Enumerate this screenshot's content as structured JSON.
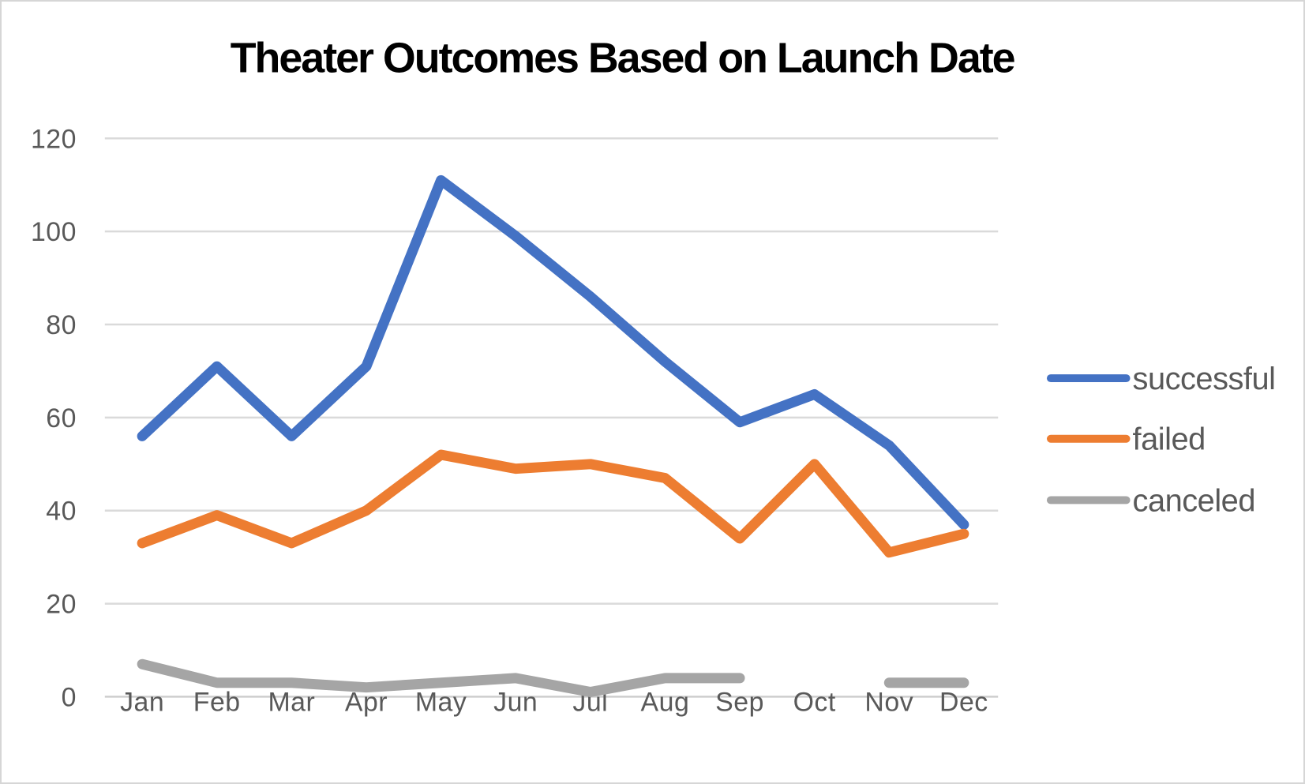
{
  "chart_data": {
    "type": "line",
    "title": "Theater Outcomes Based on Launch Date",
    "categories": [
      "Jan",
      "Feb",
      "Mar",
      "Apr",
      "May",
      "Jun",
      "Jul",
      "Aug",
      "Sep",
      "Oct",
      "Nov",
      "Dec"
    ],
    "series": [
      {
        "name": "successful",
        "color": "#4472C4",
        "values": [
          56,
          71,
          56,
          71,
          111,
          99,
          86,
          72,
          59,
          65,
          54,
          37
        ]
      },
      {
        "name": "failed",
        "color": "#ED7D31",
        "values": [
          33,
          39,
          33,
          40,
          52,
          49,
          50,
          47,
          34,
          50,
          31,
          35
        ]
      },
      {
        "name": "canceled",
        "color": "#A5A5A5",
        "values": [
          7,
          3,
          3,
          2,
          3,
          4,
          1,
          4,
          4,
          null,
          3,
          3
        ]
      }
    ],
    "ylim": [
      0,
      120
    ],
    "yticks": [
      0,
      20,
      40,
      60,
      80,
      100,
      120
    ],
    "grid": "horizontal",
    "legend_position": "right",
    "axis_text_color": "#595959",
    "gridline_color": "#DADADA",
    "axis_line_color": "#CCCCCC",
    "title_color": "#000000"
  }
}
